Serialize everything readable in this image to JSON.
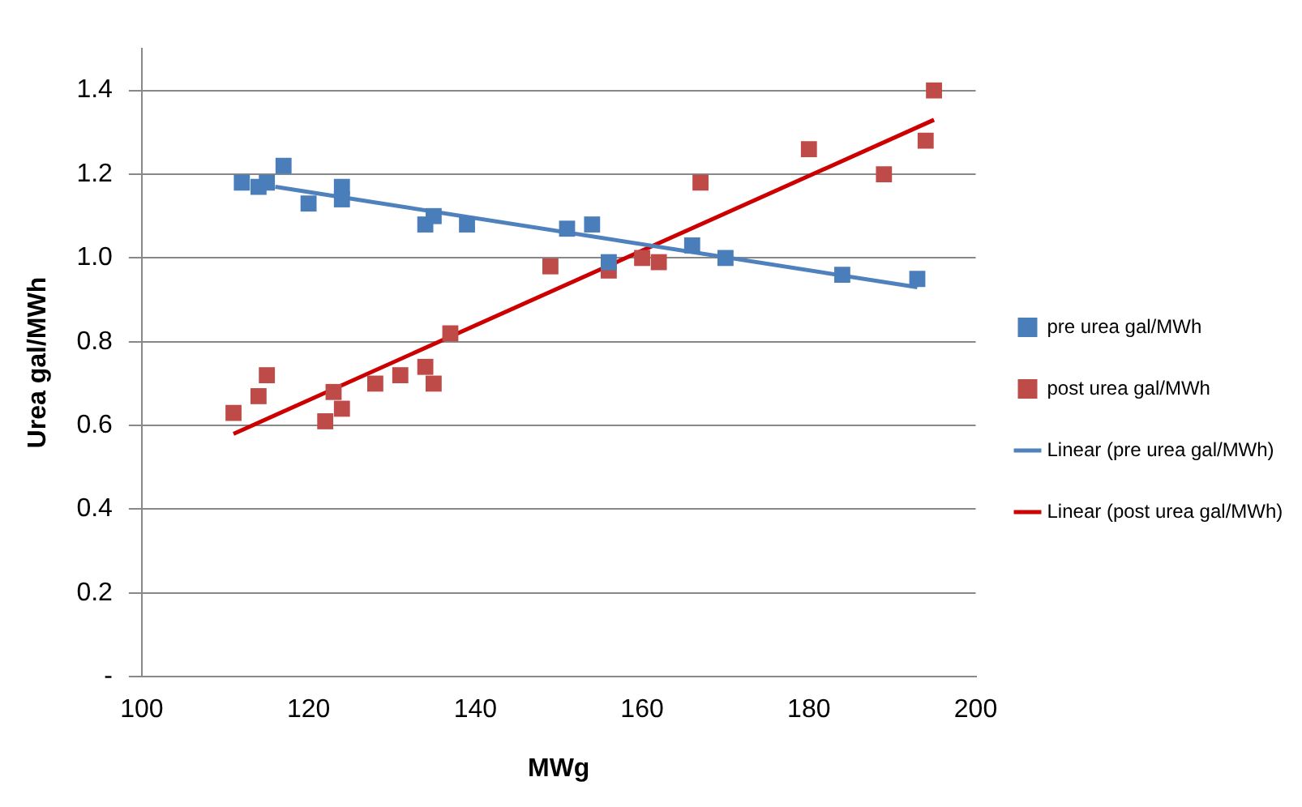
{
  "chart_data": {
    "type": "scatter",
    "xlabel": "MWg",
    "ylabel": "Urea gal/MWh",
    "xlim": [
      100,
      200
    ],
    "xticks": [
      100,
      120,
      140,
      160,
      180,
      200
    ],
    "ylim": [
      0,
      1.5
    ],
    "yticks": [
      {
        "value": 0,
        "label": "-"
      },
      {
        "value": 0.2,
        "label": "0.2"
      },
      {
        "value": 0.4,
        "label": "0.4"
      },
      {
        "value": 0.6,
        "label": "0.6"
      },
      {
        "value": 0.8,
        "label": "0.8"
      },
      {
        "value": 1,
        "label": "1.0"
      },
      {
        "value": 1.2,
        "label": "1.2"
      },
      {
        "value": 1.4,
        "label": "1.4"
      }
    ],
    "grid": "y",
    "legend": "right",
    "marker": "square",
    "series": [
      {
        "name": "pre urea gal/MWh",
        "color": "#4a7ebb",
        "x": [
          112,
          114,
          115,
          117,
          120,
          124,
          124,
          134,
          135,
          139,
          151,
          154,
          156,
          166,
          170,
          184,
          193
        ],
        "values": [
          1.18,
          1.17,
          1.18,
          1.22,
          1.13,
          1.14,
          1.17,
          1.08,
          1.1,
          1.08,
          1.07,
          1.08,
          0.99,
          1.03,
          1.0,
          0.96,
          0.95
        ]
      },
      {
        "name": "post urea gal/MWh",
        "color": "#be4b48",
        "x": [
          111,
          114,
          115,
          122,
          123,
          124,
          128,
          131,
          134,
          135,
          137,
          149,
          156,
          160,
          162,
          167,
          180,
          189,
          194,
          195
        ],
        "values": [
          0.63,
          0.67,
          0.72,
          0.61,
          0.68,
          0.64,
          0.7,
          0.72,
          0.74,
          0.7,
          0.82,
          0.98,
          0.97,
          1.0,
          0.99,
          1.18,
          1.26,
          1.2,
          1.28,
          1.4
        ]
      },
      {
        "name": "Linear (pre urea gal/MWh)",
        "type": "line",
        "color": "#4f81bd",
        "marker": "none",
        "x": [
          116,
          193
        ],
        "values": [
          1.17,
          0.93
        ]
      },
      {
        "name": "Linear (post urea gal/MWh)",
        "type": "line",
        "color": "#cc0000",
        "marker": "none",
        "x": [
          111,
          195
        ],
        "values": [
          0.58,
          1.33
        ]
      }
    ]
  }
}
